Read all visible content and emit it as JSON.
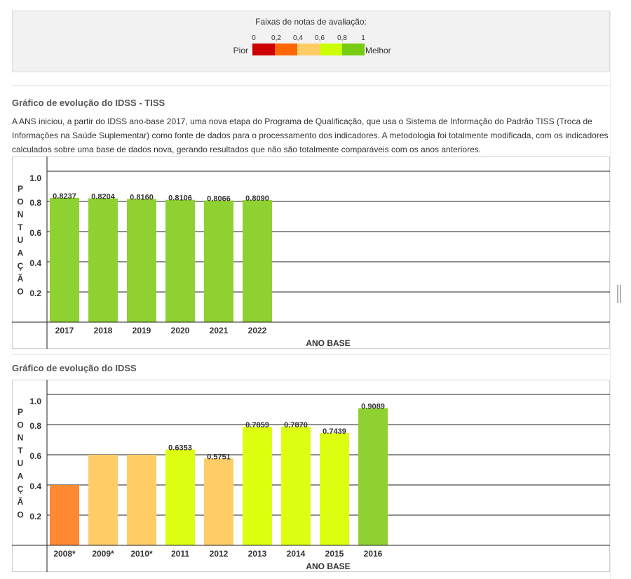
{
  "legend": {
    "title": "Faixas de notas de avaliação:",
    "ticks": [
      "0",
      "0,2",
      "0,4",
      "0,6",
      "0,8",
      "1"
    ],
    "worst_label": "Pior",
    "best_label": "Melhor",
    "band_colors": [
      "#cc0000",
      "#ff6600",
      "#ffcc66",
      "#ccff00",
      "#77cc11"
    ]
  },
  "tiss_section": {
    "heading": "Gráfico de evolução do IDSS - TISS",
    "description": "A ANS iniciou, a partir do IDSS ano-base 2017, uma nova etapa do Programa de Qualificação, que usa o Sistema de Informação do Padrão TISS (Troca de Informações na Saúde Suplementar) como fonte de dados para o processamento dos indicadores. A metodologia foi totalmente modificada, com os indicadores calculados sobre uma base de dados nova, gerando resultados que não são totalmente comparáveis com os anos anteriores."
  },
  "idss_section": {
    "heading": "Gráfico de evolução do IDSS"
  },
  "chart_data": [
    {
      "type": "bar",
      "title": "Gráfico de evolução do IDSS - TISS",
      "ylabel": "PONTUAÇÃO",
      "xlabel": "ANO BASE",
      "ylim": [
        0,
        1.0
      ],
      "yticks": [
        "0.2",
        "0.4",
        "0.6",
        "0.8",
        "1.0"
      ],
      "grid": true,
      "categories": [
        "2017",
        "2018",
        "2019",
        "2020",
        "2021",
        "2022"
      ],
      "values": [
        0.8237,
        0.8204,
        0.816,
        0.8106,
        0.8066,
        0.809
      ],
      "labels": [
        "0.8237",
        "0.8204",
        "0.8160",
        "0.8106",
        "0.8066",
        "0.8090"
      ],
      "colors": [
        "#8fd130",
        "#8fd130",
        "#8fd130",
        "#8fd130",
        "#8fd130",
        "#8fd130"
      ]
    },
    {
      "type": "bar",
      "title": "Gráfico de evolução do IDSS",
      "ylabel": "PONTUAÇÃO",
      "xlabel": "ANO BASE",
      "ylim": [
        0,
        1.0
      ],
      "yticks": [
        "0.2",
        "0.4",
        "0.6",
        "0.8",
        "1.0"
      ],
      "grid": true,
      "categories": [
        "2008*",
        "2009*",
        "2010*",
        "2011",
        "2012",
        "2013",
        "2014",
        "2015",
        "2016"
      ],
      "values": [
        0.4,
        0.6,
        0.6,
        0.6353,
        0.5751,
        0.7859,
        0.787,
        0.7439,
        0.9089
      ],
      "labels": [
        "",
        "",
        "",
        "0.6353",
        "0.5751",
        "0.7859",
        "0.7870",
        "0.7439",
        "0.9089"
      ],
      "colors": [
        "#ff8833",
        "#ffcc66",
        "#ffcc66",
        "#ddff11",
        "#ffcc66",
        "#ddff11",
        "#ddff11",
        "#ddff11",
        "#8fd130"
      ]
    }
  ]
}
